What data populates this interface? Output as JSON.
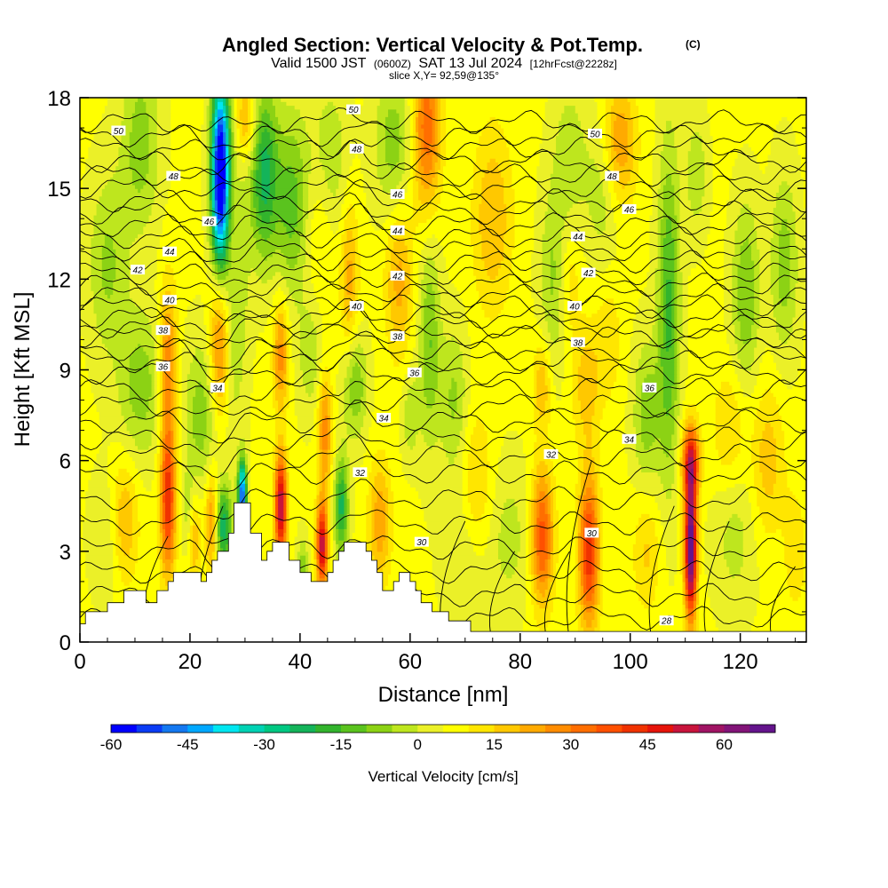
{
  "title": {
    "main": "Angled Section: Vertical Velocity & Pot.Temp.",
    "mark": "(C)",
    "valid_pre": "Valid 1500 JST",
    "valid_zulu": "(0600Z)",
    "valid_date": "SAT 13 Jul 2024",
    "valid_fcst": "[12hrFcst@2228z]",
    "slice": "slice X,Y= 92,59@135°"
  },
  "chart_data": {
    "type": "heatmap",
    "xlabel": "Distance [nm]",
    "ylabel": "Height [Kft MSL]",
    "xlim": [
      0,
      132
    ],
    "ylim": [
      0,
      18
    ],
    "x_ticks": [
      0,
      20,
      40,
      60,
      80,
      100,
      120
    ],
    "y_ticks": [
      0,
      3,
      6,
      9,
      12,
      15,
      18
    ],
    "colorbar": {
      "label": "Vertical Velocity [cm/s]",
      "tick_values": [
        -60,
        -45,
        -30,
        -15,
        0,
        15,
        30,
        45,
        60
      ],
      "range": [
        -60,
        70
      ],
      "step": 5,
      "colors": [
        "#0000ff",
        "#0a3cf5",
        "#1478f0",
        "#00a8ff",
        "#00e6f0",
        "#00d2b4",
        "#00c882",
        "#14b45a",
        "#32b42d",
        "#5ac31e",
        "#8cd214",
        "#bee61e",
        "#ebf028",
        "#ffff00",
        "#ffe600",
        "#ffc800",
        "#ffaa00",
        "#ff8c00",
        "#ff6e00",
        "#ff5000",
        "#f03200",
        "#e6140a",
        "#c8143c",
        "#a01464",
        "#821478",
        "#64148c"
      ]
    },
    "contour_field": "Pot.Temp. (C)",
    "contour_levels": [
      28,
      30,
      32,
      34,
      36,
      38,
      40,
      42,
      44,
      46,
      48,
      50
    ],
    "contour_labels": [
      {
        "text": "50",
        "x": 7,
        "y": 16.9
      },
      {
        "text": "48",
        "x": 17,
        "y": 15.4
      },
      {
        "text": "46",
        "x": 23.5,
        "y": 13.9
      },
      {
        "text": "44",
        "x": 16.3,
        "y": 12.9
      },
      {
        "text": "42",
        "x": 10.5,
        "y": 12.3
      },
      {
        "text": "40",
        "x": 16.3,
        "y": 11.3
      },
      {
        "text": "38",
        "x": 15.1,
        "y": 10.3
      },
      {
        "text": "36",
        "x": 15.1,
        "y": 9.1
      },
      {
        "text": "34",
        "x": 25,
        "y": 8.4
      },
      {
        "text": "50",
        "x": 49.7,
        "y": 17.6
      },
      {
        "text": "48",
        "x": 50.3,
        "y": 16.3
      },
      {
        "text": "46",
        "x": 57.7,
        "y": 14.8
      },
      {
        "text": "44",
        "x": 57.7,
        "y": 13.6
      },
      {
        "text": "42",
        "x": 57.7,
        "y": 12.1
      },
      {
        "text": "40",
        "x": 50.3,
        "y": 11.1
      },
      {
        "text": "38",
        "x": 57.7,
        "y": 10.1
      },
      {
        "text": "36",
        "x": 60.8,
        "y": 8.9
      },
      {
        "text": "34",
        "x": 55.2,
        "y": 7.4
      },
      {
        "text": "32",
        "x": 50.9,
        "y": 5.6
      },
      {
        "text": "30",
        "x": 62.1,
        "y": 3.3
      },
      {
        "text": "50",
        "x": 93.6,
        "y": 16.8
      },
      {
        "text": "48",
        "x": 96.7,
        "y": 15.4
      },
      {
        "text": "46",
        "x": 99.8,
        "y": 14.3
      },
      {
        "text": "44",
        "x": 90.5,
        "y": 13.4
      },
      {
        "text": "42",
        "x": 92.4,
        "y": 12.2
      },
      {
        "text": "40",
        "x": 89.9,
        "y": 11.1
      },
      {
        "text": "38",
        "x": 90.5,
        "y": 9.9
      },
      {
        "text": "36",
        "x": 103.5,
        "y": 8.4
      },
      {
        "text": "34",
        "x": 99.8,
        "y": 6.7
      },
      {
        "text": "32",
        "x": 85.6,
        "y": 6.2
      },
      {
        "text": "30",
        "x": 93.0,
        "y": 3.6
      },
      {
        "text": "28",
        "x": 106.6,
        "y": 0.7
      }
    ]
  }
}
